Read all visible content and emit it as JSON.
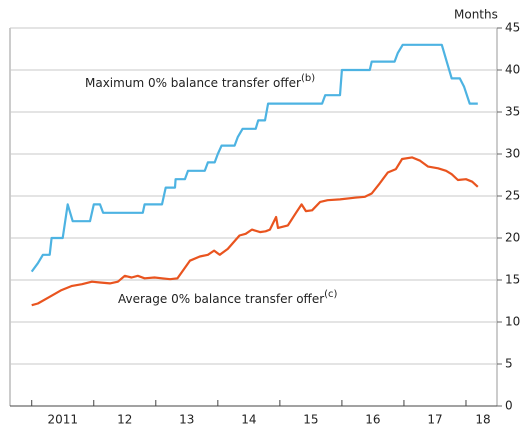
{
  "chart_data": {
    "type": "line",
    "y_axis_label": "Months",
    "xlim": [
      2010.65,
      2018.5
    ],
    "xticks": [
      {
        "value": 2011.5,
        "label": "2011"
      },
      {
        "value": 2012.5,
        "label": "12"
      },
      {
        "value": 2013.5,
        "label": "13"
      },
      {
        "value": 2014.5,
        "label": "14"
      },
      {
        "value": 2015.5,
        "label": "15"
      },
      {
        "value": 2016.5,
        "label": "16"
      },
      {
        "value": 2017.5,
        "label": "17"
      },
      {
        "value": 2018.5,
        "label": "18"
      }
    ],
    "xminorticks": [
      2011,
      2012,
      2013,
      2014,
      2015,
      2016,
      2017,
      2018
    ],
    "ylim": [
      0,
      45
    ],
    "yticks": [
      0,
      5,
      10,
      15,
      20,
      25,
      30,
      35,
      40,
      45
    ],
    "grid": true,
    "series": [
      {
        "name": "Maximum 0% balance transfer offer",
        "note": "(b)",
        "color": "#4db3e2",
        "x": [
          2011.0,
          2011.1,
          2011.18,
          2011.29,
          2011.32,
          2011.5,
          2011.58,
          2011.66,
          2011.94,
          2012.0,
          2012.1,
          2012.15,
          2012.79,
          2012.82,
          2013.1,
          2013.16,
          2013.31,
          2013.32,
          2013.47,
          2013.52,
          2013.79,
          2013.84,
          2013.95,
          2014.0,
          2014.06,
          2014.27,
          2014.32,
          2014.4,
          2014.61,
          2014.65,
          2014.76,
          2014.81,
          2015.68,
          2015.73,
          2015.97,
          2016.0,
          2016.45,
          2016.48,
          2016.85,
          2016.9,
          2016.98,
          2017.61,
          2017.69,
          2017.77,
          2017.9,
          2017.97,
          2018.06,
          2018.19
        ],
        "values": [
          16,
          17,
          18,
          18,
          20,
          20,
          24,
          22,
          22,
          24,
          24,
          23,
          23,
          24,
          24,
          26,
          26,
          27,
          27,
          28,
          28,
          29,
          29,
          30,
          31,
          31,
          32,
          33,
          33,
          34,
          34,
          36,
          36,
          37,
          37,
          40,
          40,
          41,
          41,
          42,
          43,
          43,
          41,
          39,
          39,
          38,
          36,
          36
        ]
      },
      {
        "name": "Average 0% balance transfer offer",
        "note": "(c)",
        "color": "#e9541f",
        "x": [
          2011.0,
          2011.1,
          2011.29,
          2011.48,
          2011.65,
          2011.81,
          2011.97,
          2012.1,
          2012.26,
          2012.39,
          2012.5,
          2012.61,
          2012.71,
          2012.82,
          2012.98,
          2013.1,
          2013.23,
          2013.35,
          2013.55,
          2013.71,
          2013.84,
          2013.94,
          2014.03,
          2014.16,
          2014.35,
          2014.45,
          2014.55,
          2014.68,
          2014.77,
          2014.84,
          2014.94,
          2014.97,
          2015.13,
          2015.26,
          2015.35,
          2015.42,
          2015.52,
          2015.65,
          2015.77,
          2015.97,
          2016.21,
          2016.37,
          2016.48,
          2016.61,
          2016.74,
          2016.87,
          2016.97,
          2017.13,
          2017.26,
          2017.39,
          2017.55,
          2017.68,
          2017.77,
          2017.87,
          2018.0,
          2018.1,
          2018.19
        ],
        "values": [
          12,
          12.2,
          13,
          13.8,
          14.3,
          14.5,
          14.8,
          14.7,
          14.6,
          14.8,
          15.5,
          15.3,
          15.5,
          15.2,
          15.3,
          15.2,
          15.1,
          15.2,
          17.3,
          17.8,
          18,
          18.5,
          18,
          18.7,
          20.3,
          20.5,
          21,
          20.7,
          20.8,
          21,
          22.5,
          21.2,
          21.5,
          23,
          24,
          23.2,
          23.3,
          24.3,
          24.5,
          24.6,
          24.8,
          24.9,
          25.3,
          26.5,
          27.8,
          28.2,
          29.4,
          29.6,
          29.2,
          28.5,
          28.3,
          28,
          27.6,
          26.9,
          27,
          26.7,
          26.1
        ]
      }
    ]
  }
}
